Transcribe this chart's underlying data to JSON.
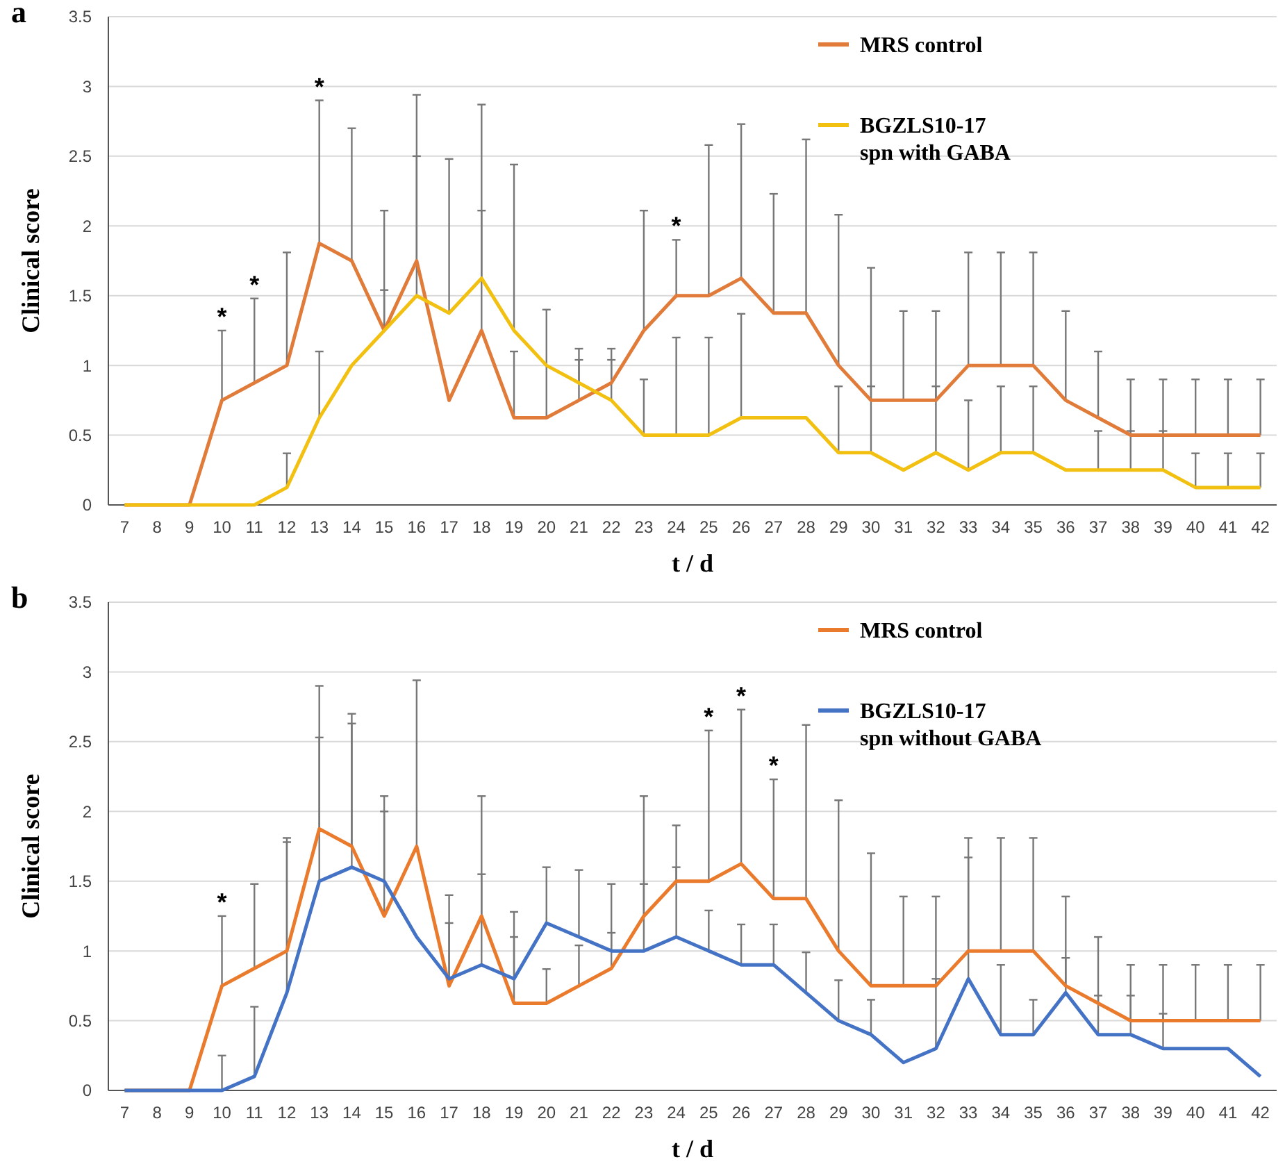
{
  "chart_data": [
    {
      "type": "line",
      "title": "a",
      "xlabel": "t / d",
      "ylabel": "Clinical score",
      "categories": [
        "7",
        "8",
        "9",
        "10",
        "11",
        "12",
        "13",
        "14",
        "15",
        "16",
        "17",
        "18",
        "19",
        "20",
        "21",
        "22",
        "23",
        "24",
        "25",
        "26",
        "27",
        "28",
        "29",
        "30",
        "31",
        "32",
        "33",
        "34",
        "35",
        "36",
        "37",
        "38",
        "39",
        "40",
        "41",
        "42"
      ],
      "ylim": [
        0,
        3.5
      ],
      "yticks": [
        0,
        0.5,
        1,
        1.5,
        2,
        2.5,
        3,
        3.5
      ],
      "grid": "y",
      "legend": "top right",
      "series": [
        {
          "name": "MRS control",
          "color": "#e07b39",
          "values": [
            0,
            0,
            0,
            0.75,
            0.875,
            1,
            1.875,
            1.75,
            1.25,
            1.75,
            0.75,
            1.25,
            0.625,
            0.625,
            0.75,
            0.875,
            1.25,
            1.5,
            1.5,
            1.625,
            1.375,
            1.375,
            1,
            0.75,
            0.75,
            0.75,
            1,
            1,
            1,
            0.75,
            0.625,
            0.5,
            0.5,
            0.5,
            0.5,
            0.5
          ],
          "errors": [
            null,
            null,
            null,
            [
              0.75,
              1.25
            ],
            [
              0.875,
              1.48
            ],
            [
              1,
              1.81
            ],
            [
              1.875,
              2.9
            ],
            [
              1.75,
              2.7
            ],
            [
              1.25,
              2.11
            ],
            [
              1.75,
              2.94
            ],
            null,
            [
              1.25,
              2.87
            ],
            [
              0.625,
              1.1
            ],
            [
              0.625,
              1.4
            ],
            [
              0.75,
              1.12
            ],
            [
              0.875,
              1.12
            ],
            [
              1.25,
              2.11
            ],
            [
              1.5,
              1.9
            ],
            [
              1.5,
              2.58
            ],
            [
              1.625,
              2.73
            ],
            [
              1.375,
              2.23
            ],
            [
              1.375,
              2.62
            ],
            [
              1,
              2.08
            ],
            [
              0.75,
              1.7
            ],
            [
              0.75,
              1.39
            ],
            [
              0.75,
              1.39
            ],
            [
              1,
              1.81
            ],
            [
              1,
              1.81
            ],
            [
              1,
              1.81
            ],
            [
              0.75,
              1.39
            ],
            [
              0.625,
              1.1
            ],
            [
              0.5,
              0.9
            ],
            [
              0.5,
              0.9
            ],
            [
              0.5,
              0.9
            ],
            [
              0.5,
              0.9
            ],
            [
              0.5,
              0.9
            ]
          ]
        },
        {
          "name": "BGZLS10-17 spn with GABA",
          "color": "#f2c011",
          "values": [
            0,
            0,
            0,
            0,
            0,
            0.125,
            0.625,
            1,
            1.25,
            1.5,
            1.375,
            1.625,
            1.25,
            1,
            0.875,
            0.75,
            0.5,
            0.5,
            0.5,
            0.625,
            0.625,
            0.625,
            0.375,
            0.375,
            0.25,
            0.375,
            0.25,
            0.375,
            0.375,
            0.25,
            0.25,
            0.25,
            0.25,
            0.125,
            0.125,
            0.125
          ],
          "errors": [
            null,
            null,
            null,
            null,
            null,
            [
              0.125,
              0.37
            ],
            [
              0.625,
              1.1
            ],
            null,
            [
              1.25,
              1.54
            ],
            [
              1.5,
              2.5
            ],
            [
              1.375,
              2.48
            ],
            [
              1.625,
              2.11
            ],
            [
              1.25,
              2.44
            ],
            null,
            [
              0.875,
              1.04
            ],
            [
              0.75,
              1.04
            ],
            [
              0.5,
              0.9
            ],
            [
              0.5,
              1.2
            ],
            [
              0.5,
              1.2
            ],
            [
              0.625,
              1.37
            ],
            null,
            null,
            [
              0.375,
              0.85
            ],
            [
              0.375,
              0.85
            ],
            null,
            [
              0.375,
              0.85
            ],
            [
              0.25,
              0.75
            ],
            [
              0.375,
              0.85
            ],
            [
              0.375,
              0.85
            ],
            null,
            [
              0.25,
              0.53
            ],
            [
              0.25,
              0.53
            ],
            [
              0.25,
              0.53
            ],
            [
              0.125,
              0.37
            ],
            [
              0.125,
              0.37
            ],
            [
              0.125,
              0.37
            ]
          ]
        }
      ],
      "annotations": [
        {
          "text": "*",
          "x": "10",
          "y": 1.25
        },
        {
          "text": "*",
          "x": "11",
          "y": 1.48
        },
        {
          "text": "*",
          "x": "13",
          "y": 2.9
        },
        {
          "text": "*",
          "x": "24",
          "y": 1.9
        }
      ]
    },
    {
      "type": "line",
      "title": "b",
      "xlabel": "t / d",
      "ylabel": "Clinical score",
      "categories": [
        "7",
        "8",
        "9",
        "10",
        "11",
        "12",
        "13",
        "14",
        "15",
        "16",
        "17",
        "18",
        "19",
        "20",
        "21",
        "22",
        "23",
        "24",
        "25",
        "26",
        "27",
        "28",
        "29",
        "30",
        "31",
        "32",
        "33",
        "34",
        "35",
        "36",
        "37",
        "38",
        "39",
        "40",
        "41",
        "42"
      ],
      "ylim": [
        0,
        3.5
      ],
      "yticks": [
        0,
        0.5,
        1,
        1.5,
        2,
        2.5,
        3,
        3.5
      ],
      "grid": "y",
      "legend": "top right",
      "series": [
        {
          "name": "MRS control",
          "color": "#ea7a2c",
          "values": [
            0,
            0,
            0,
            0.75,
            0.875,
            1,
            1.875,
            1.75,
            1.25,
            1.75,
            0.75,
            1.25,
            0.625,
            0.625,
            0.75,
            0.875,
            1.25,
            1.5,
            1.5,
            1.625,
            1.375,
            1.375,
            1,
            0.75,
            0.75,
            0.75,
            1,
            1,
            1,
            0.75,
            0.625,
            0.5,
            0.5,
            0.5,
            0.5,
            0.5
          ],
          "errors": [
            null,
            null,
            null,
            [
              0.75,
              1.25
            ],
            [
              0.875,
              1.48
            ],
            [
              1,
              1.81
            ],
            [
              1.875,
              2.9
            ],
            [
              1.75,
              2.7
            ],
            [
              1.25,
              2.11
            ],
            [
              1.75,
              2.94
            ],
            [
              0.75,
              1.4
            ],
            [
              1.25,
              2.11
            ],
            [
              0.625,
              1.28
            ],
            [
              0.625,
              0.87
            ],
            [
              0.75,
              1.04
            ],
            [
              0.875,
              1.48
            ],
            [
              1.25,
              2.11
            ],
            [
              1.5,
              1.9
            ],
            [
              1.5,
              2.58
            ],
            [
              1.625,
              2.73
            ],
            [
              1.375,
              2.23
            ],
            [
              1.375,
              2.62
            ],
            [
              1,
              2.08
            ],
            [
              0.75,
              1.7
            ],
            [
              0.75,
              1.39
            ],
            [
              0.75,
              1.39
            ],
            [
              1,
              1.81
            ],
            [
              1,
              1.81
            ],
            [
              1,
              1.81
            ],
            [
              0.75,
              1.39
            ],
            [
              0.625,
              1.1
            ],
            [
              0.5,
              0.9
            ],
            [
              0.5,
              0.9
            ],
            [
              0.5,
              0.9
            ],
            [
              0.5,
              0.9
            ],
            [
              0.5,
              0.9
            ]
          ]
        },
        {
          "name": "BGZLS10-17 spn without GABA",
          "color": "#4472c4",
          "values": [
            0,
            0,
            0,
            0,
            0.1,
            0.7,
            1.5,
            1.6,
            1.5,
            1.1,
            0.8,
            0.9,
            0.8,
            1.2,
            1.1,
            1,
            1,
            1.1,
            1,
            0.9,
            0.9,
            0.7,
            0.5,
            0.4,
            0.2,
            0.3,
            0.8,
            0.4,
            0.4,
            0.7,
            0.4,
            0.4,
            0.3,
            0.3,
            0.3,
            0.1
          ],
          "errors": [
            null,
            null,
            null,
            [
              0,
              0.25
            ],
            [
              0.1,
              0.6
            ],
            [
              0.7,
              1.78
            ],
            [
              1.5,
              2.53
            ],
            [
              1.6,
              2.63
            ],
            [
              1.5,
              2
            ],
            null,
            [
              0.8,
              1.2
            ],
            [
              0.9,
              1.55
            ],
            [
              0.8,
              1.1
            ],
            [
              1.2,
              1.6
            ],
            [
              1.1,
              1.58
            ],
            [
              1,
              1.13
            ],
            [
              1,
              1.48
            ],
            [
              1.1,
              1.6
            ],
            [
              1,
              1.29
            ],
            [
              0.9,
              1.19
            ],
            [
              0.9,
              1.19
            ],
            [
              0.7,
              0.99
            ],
            [
              0.5,
              0.79
            ],
            [
              0.4,
              0.65
            ],
            null,
            [
              0.3,
              0.8
            ],
            [
              0.8,
              1.67
            ],
            [
              0.4,
              0.9
            ],
            [
              0.4,
              0.65
            ],
            [
              0.7,
              0.95
            ],
            [
              0.4,
              0.68
            ],
            [
              0.4,
              0.68
            ],
            [
              0.3,
              0.55
            ],
            null,
            null,
            null
          ]
        }
      ],
      "annotations": [
        {
          "text": "*",
          "x": "10",
          "y": 1.25
        },
        {
          "text": "*",
          "x": "25",
          "y": 2.58
        },
        {
          "text": "*",
          "x": "26",
          "y": 2.73
        },
        {
          "text": "*",
          "x": "27",
          "y": 2.23
        }
      ]
    }
  ]
}
